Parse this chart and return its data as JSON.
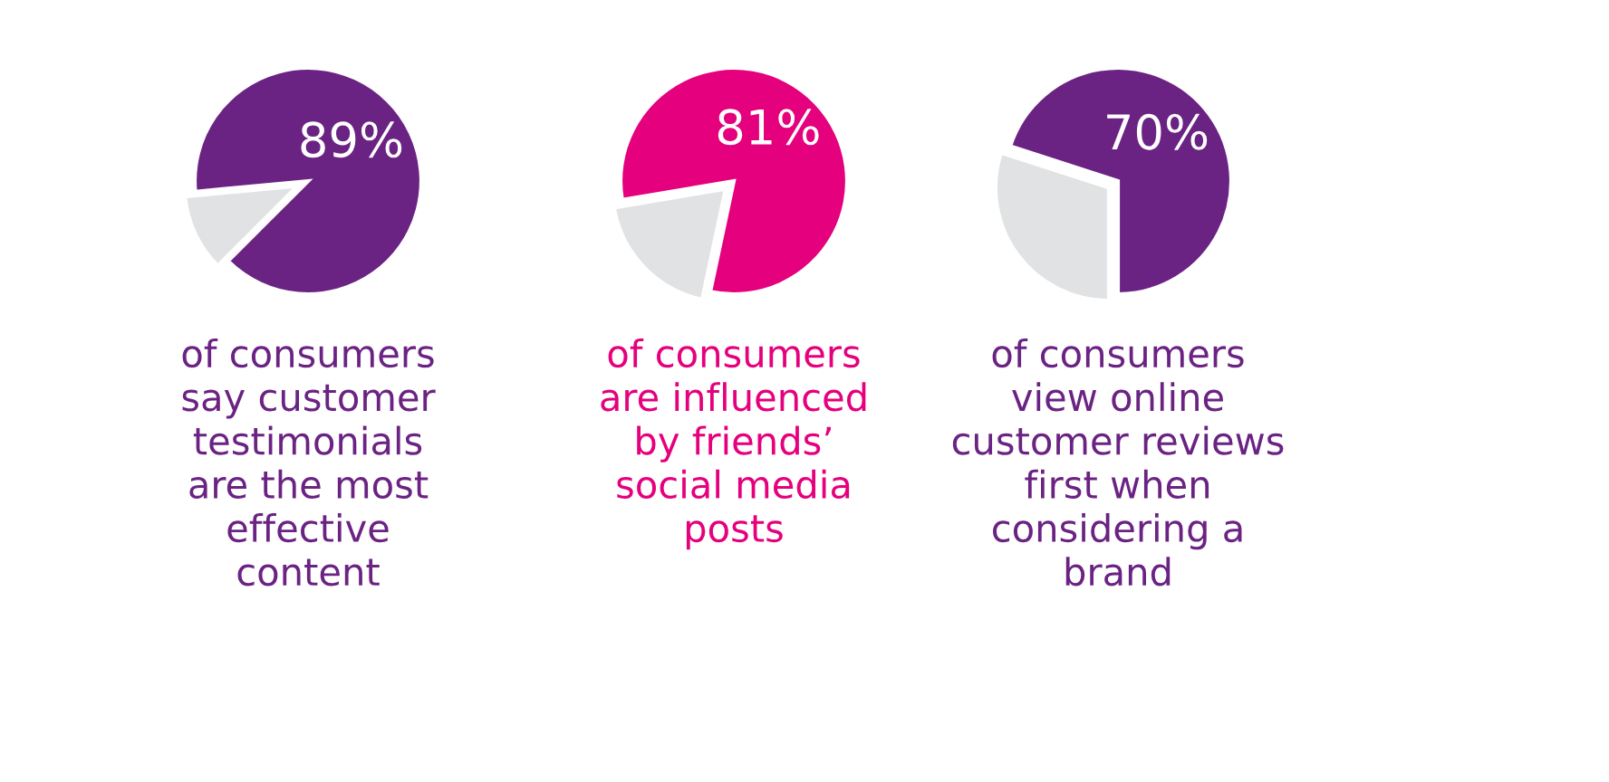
{
  "chart_data": [
    {
      "type": "pie",
      "categories": [
        null,
        null
      ],
      "values": [
        89,
        11
      ],
      "colors": [
        "#6b2383",
        "#e1e2e4"
      ],
      "value_labels": [
        "89%",
        null
      ],
      "annotations": [
        "of consumers\nsay customer\ntestimonials\nare the most\neffective\ncontent"
      ]
    },
    {
      "type": "pie",
      "categories": [
        null,
        null
      ],
      "values": [
        81,
        19
      ],
      "colors": [
        "#e5007d",
        "#e1e2e4"
      ],
      "value_labels": [
        "81%",
        null
      ],
      "annotations": [
        "of consumers\nare influenced\nby friends’\nsocial media\nposts"
      ]
    },
    {
      "type": "pie",
      "categories": [
        null,
        null
      ],
      "values": [
        70,
        30
      ],
      "colors": [
        "#6b2383",
        "#e1e2e4"
      ],
      "value_labels": [
        "70%",
        null
      ],
      "annotations": [
        "of consumers\nview online\ncustomer reviews\nfirst when\nconsidering a\nbrand"
      ]
    }
  ]
}
